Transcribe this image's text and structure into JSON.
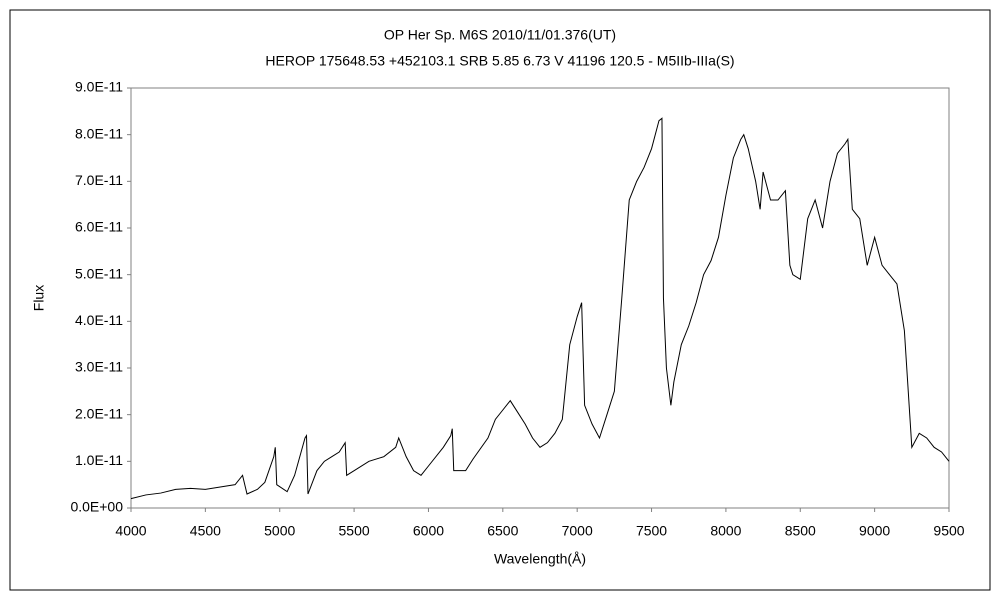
{
  "chart_data": {
    "type": "line",
    "title": "OP Her    Sp. M6S    2010/11/01.376(UT)",
    "subtitle": "HEROP 175648.53 +452103.1 SRB 5.85 6.73 V 41196 120.5 - M5IIb-IIIa(S)",
    "x_label": "Wavelength(Å)",
    "y_label": "Flux",
    "color": "#000000",
    "grid": false,
    "xlim": [
      4000,
      9500
    ],
    "xticks": [
      4000,
      4500,
      5000,
      5500,
      6000,
      6500,
      7000,
      7500,
      8000,
      8500,
      9000,
      9500
    ],
    "ylim": [
      0,
      9e-11
    ],
    "yticks": [
      {
        "value": 0,
        "label": "0.0E+00"
      },
      {
        "value": 1e-11,
        "label": "1.0E-11"
      },
      {
        "value": 2e-11,
        "label": "2.0E-11"
      },
      {
        "value": 3e-11,
        "label": "3.0E-11"
      },
      {
        "value": 4e-11,
        "label": "4.0E-11"
      },
      {
        "value": 5e-11,
        "label": "5.0E-11"
      },
      {
        "value": 6e-11,
        "label": "6.0E-11"
      },
      {
        "value": 7e-11,
        "label": "7.0E-11"
      },
      {
        "value": 8e-11,
        "label": "8.0E-11"
      },
      {
        "value": 9e-11,
        "label": "9.0E-11"
      }
    ],
    "x": [
      4000,
      4100,
      4200,
      4300,
      4400,
      4500,
      4600,
      4700,
      4750,
      4780,
      4850,
      4900,
      4960,
      4970,
      4980,
      5050,
      5100,
      5170,
      5180,
      5190,
      5250,
      5300,
      5350,
      5400,
      5440,
      5450,
      5500,
      5600,
      5700,
      5780,
      5800,
      5850,
      5900,
      5950,
      6000,
      6100,
      6150,
      6160,
      6170,
      6250,
      6300,
      6400,
      6450,
      6500,
      6550,
      6600,
      6650,
      6700,
      6750,
      6800,
      6850,
      6900,
      6950,
      7000,
      7030,
      7050,
      7100,
      7150,
      7200,
      7250,
      7300,
      7350,
      7400,
      7450,
      7500,
      7550,
      7570,
      7580,
      7600,
      7630,
      7650,
      7700,
      7750,
      7800,
      7850,
      7900,
      7950,
      8000,
      8050,
      8100,
      8120,
      8150,
      8200,
      8230,
      8250,
      8300,
      8350,
      8400,
      8430,
      8450,
      8500,
      8550,
      8600,
      8650,
      8700,
      8750,
      8800,
      8820,
      8850,
      8900,
      8950,
      9000,
      9050,
      9100,
      9150,
      9200,
      9250,
      9300,
      9350,
      9400,
      9450,
      9500
    ],
    "values": [
      2e-12,
      2.8e-12,
      3.2e-12,
      4e-12,
      4.2e-12,
      4e-12,
      4.5e-12,
      5e-12,
      7e-12,
      3e-12,
      4e-12,
      5.5e-12,
      1.1e-11,
      1.3e-11,
      5e-12,
      3.5e-12,
      7e-12,
      1.5e-11,
      1.55e-11,
      3e-12,
      8e-12,
      1e-11,
      1.1e-11,
      1.2e-11,
      1.4e-11,
      7e-12,
      8e-12,
      1e-11,
      1.1e-11,
      1.3e-11,
      1.5e-11,
      1.1e-11,
      8e-12,
      7e-12,
      9e-12,
      1.3e-11,
      1.55e-11,
      1.7e-11,
      8e-12,
      8e-12,
      1.05e-11,
      1.5e-11,
      1.9e-11,
      2.1e-11,
      2.3e-11,
      2.05e-11,
      1.8e-11,
      1.5e-11,
      1.3e-11,
      1.4e-11,
      1.6e-11,
      1.9e-11,
      3.5e-11,
      4.1e-11,
      4.4e-11,
      2.2e-11,
      1.8e-11,
      1.5e-11,
      2e-11,
      2.5e-11,
      4.5e-11,
      6.6e-11,
      7e-11,
      7.3e-11,
      7.7e-11,
      8.3e-11,
      8.35e-11,
      4.5e-11,
      3e-11,
      2.2e-11,
      2.7e-11,
      3.5e-11,
      3.9e-11,
      4.4e-11,
      5e-11,
      5.3e-11,
      5.8e-11,
      6.7e-11,
      7.5e-11,
      7.9e-11,
      8e-11,
      7.7e-11,
      7e-11,
      6.4e-11,
      7.2e-11,
      6.6e-11,
      6.6e-11,
      6.8e-11,
      5.2e-11,
      5e-11,
      4.9e-11,
      6.2e-11,
      6.6e-11,
      6e-11,
      7e-11,
      7.6e-11,
      7.8e-11,
      7.9e-11,
      6.4e-11,
      6.2e-11,
      5.2e-11,
      5.8e-11,
      5.2e-11,
      5e-11,
      4.8e-11,
      3.8e-11,
      1.3e-11,
      1.6e-11,
      1.5e-11,
      1.3e-11,
      1.2e-11,
      1e-11
    ]
  }
}
